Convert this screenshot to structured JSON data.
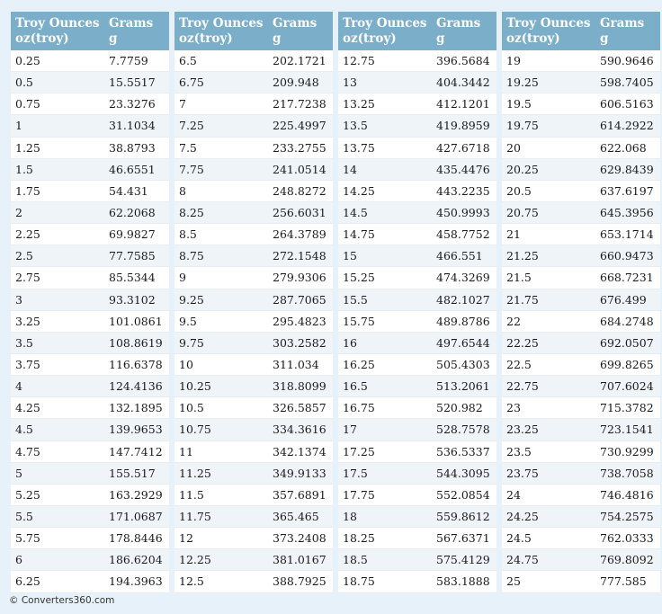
{
  "header": {
    "col1_line1": "Troy Ounces",
    "col1_line2": "oz(troy)",
    "col2_line1": "Grams",
    "col2_line2": "g"
  },
  "tables": [
    {
      "rows": [
        [
          "0.25",
          "7.7759"
        ],
        [
          "0.5",
          "15.5517"
        ],
        [
          "0.75",
          "23.3276"
        ],
        [
          "1",
          "31.1034"
        ],
        [
          "1.25",
          "38.8793"
        ],
        [
          "1.5",
          "46.6551"
        ],
        [
          "1.75",
          "54.431"
        ],
        [
          "2",
          "62.2068"
        ],
        [
          "2.25",
          "69.9827"
        ],
        [
          "2.5",
          "77.7585"
        ],
        [
          "2.75",
          "85.5344"
        ],
        [
          "3",
          "93.3102"
        ],
        [
          "3.25",
          "101.0861"
        ],
        [
          "3.5",
          "108.8619"
        ],
        [
          "3.75",
          "116.6378"
        ],
        [
          "4",
          "124.4136"
        ],
        [
          "4.25",
          "132.1895"
        ],
        [
          "4.5",
          "139.9653"
        ],
        [
          "4.75",
          "147.7412"
        ],
        [
          "5",
          "155.517"
        ],
        [
          "5.25",
          "163.2929"
        ],
        [
          "5.5",
          "171.0687"
        ],
        [
          "5.75",
          "178.8446"
        ],
        [
          "6",
          "186.6204"
        ],
        [
          "6.25",
          "194.3963"
        ]
      ]
    },
    {
      "rows": [
        [
          "6.5",
          "202.1721"
        ],
        [
          "6.75",
          "209.948"
        ],
        [
          "7",
          "217.7238"
        ],
        [
          "7.25",
          "225.4997"
        ],
        [
          "7.5",
          "233.2755"
        ],
        [
          "7.75",
          "241.0514"
        ],
        [
          "8",
          "248.8272"
        ],
        [
          "8.25",
          "256.6031"
        ],
        [
          "8.5",
          "264.3789"
        ],
        [
          "8.75",
          "272.1548"
        ],
        [
          "9",
          "279.9306"
        ],
        [
          "9.25",
          "287.7065"
        ],
        [
          "9.5",
          "295.4823"
        ],
        [
          "9.75",
          "303.2582"
        ],
        [
          "10",
          "311.034"
        ],
        [
          "10.25",
          "318.8099"
        ],
        [
          "10.5",
          "326.5857"
        ],
        [
          "10.75",
          "334.3616"
        ],
        [
          "11",
          "342.1374"
        ],
        [
          "11.25",
          "349.9133"
        ],
        [
          "11.5",
          "357.6891"
        ],
        [
          "11.75",
          "365.465"
        ],
        [
          "12",
          "373.2408"
        ],
        [
          "12.25",
          "381.0167"
        ],
        [
          "12.5",
          "388.7925"
        ]
      ]
    },
    {
      "rows": [
        [
          "12.75",
          "396.5684"
        ],
        [
          "13",
          "404.3442"
        ],
        [
          "13.25",
          "412.1201"
        ],
        [
          "13.5",
          "419.8959"
        ],
        [
          "13.75",
          "427.6718"
        ],
        [
          "14",
          "435.4476"
        ],
        [
          "14.25",
          "443.2235"
        ],
        [
          "14.5",
          "450.9993"
        ],
        [
          "14.75",
          "458.7752"
        ],
        [
          "15",
          "466.551"
        ],
        [
          "15.25",
          "474.3269"
        ],
        [
          "15.5",
          "482.1027"
        ],
        [
          "15.75",
          "489.8786"
        ],
        [
          "16",
          "497.6544"
        ],
        [
          "16.25",
          "505.4303"
        ],
        [
          "16.5",
          "513.2061"
        ],
        [
          "16.75",
          "520.982"
        ],
        [
          "17",
          "528.7578"
        ],
        [
          "17.25",
          "536.5337"
        ],
        [
          "17.5",
          "544.3095"
        ],
        [
          "17.75",
          "552.0854"
        ],
        [
          "18",
          "559.8612"
        ],
        [
          "18.25",
          "567.6371"
        ],
        [
          "18.5",
          "575.4129"
        ],
        [
          "18.75",
          "583.1888"
        ]
      ]
    },
    {
      "rows": [
        [
          "19",
          "590.9646"
        ],
        [
          "19.25",
          "598.7405"
        ],
        [
          "19.5",
          "606.5163"
        ],
        [
          "19.75",
          "614.2922"
        ],
        [
          "20",
          "622.068"
        ],
        [
          "20.25",
          "629.8439"
        ],
        [
          "20.5",
          "637.6197"
        ],
        [
          "20.75",
          "645.3956"
        ],
        [
          "21",
          "653.1714"
        ],
        [
          "21.25",
          "660.9473"
        ],
        [
          "21.5",
          "668.7231"
        ],
        [
          "21.75",
          "676.499"
        ],
        [
          "22",
          "684.2748"
        ],
        [
          "22.25",
          "692.0507"
        ],
        [
          "22.5",
          "699.8265"
        ],
        [
          "22.75",
          "707.6024"
        ],
        [
          "23",
          "715.3782"
        ],
        [
          "23.25",
          "723.1541"
        ],
        [
          "23.5",
          "730.9299"
        ],
        [
          "23.75",
          "738.7058"
        ],
        [
          "24",
          "746.4816"
        ],
        [
          "24.25",
          "754.2575"
        ],
        [
          "24.5",
          "762.0333"
        ],
        [
          "24.75",
          "769.8092"
        ],
        [
          "25",
          "777.585"
        ]
      ]
    }
  ],
  "footer": {
    "credit": "© Converters360.com"
  },
  "colors": {
    "header_bg": "#7aaec9",
    "page_bg": "#e6f1f9",
    "row_alt": "#eef4f8"
  }
}
